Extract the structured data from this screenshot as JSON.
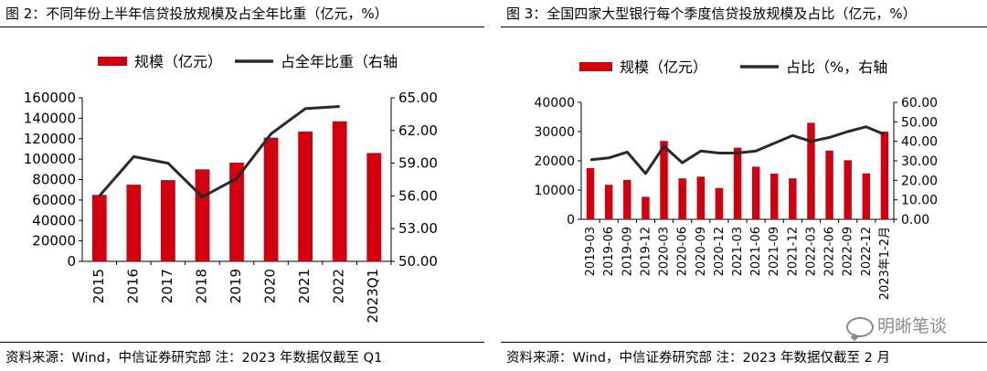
{
  "watermark": "明晰笔谈",
  "chart_data": [
    {
      "type": "bar",
      "title": "图 2：不同年份上半年信贷投放规模及占全年比重（亿元，%）",
      "source": "资料来源：Wind，中信证券研究部  注：2023 年数据仅截至 Q1",
      "categories": [
        "2015",
        "2016",
        "2017",
        "2018",
        "2019",
        "2020",
        "2021",
        "2022",
        "2023Q1"
      ],
      "series": [
        {
          "name": "规模（亿元）",
          "type": "bar",
          "axis": "left",
          "color": "#D2000F",
          "values": [
            65000,
            75000,
            79500,
            90000,
            96500,
            121000,
            127000,
            137000,
            106000
          ]
        },
        {
          "name": "占全年比重（右轴",
          "type": "line",
          "axis": "right",
          "color": "#2a2a2a",
          "values": [
            56.0,
            59.6,
            59.0,
            55.9,
            57.6,
            61.7,
            64.0,
            64.2,
            null
          ]
        }
      ],
      "y_left": {
        "min": 0,
        "max": 160000,
        "ticks": [
          "0",
          "20000",
          "40000",
          "60000",
          "80000",
          "100000",
          "120000",
          "140000",
          "160000"
        ]
      },
      "y_right": {
        "min": 50,
        "max": 65,
        "ticks": [
          "50.00",
          "53.00",
          "56.00",
          "59.00",
          "62.00",
          "65.00"
        ]
      },
      "legend_position": "top",
      "grid": false
    },
    {
      "type": "bar",
      "title": "图 3：全国四家大型银行每个季度信贷投放规模及占比（亿元，%）",
      "source": "资料来源：Wind，中信证券研究部  注：2023 年数据仅截至 2 月",
      "categories": [
        "2019-03",
        "2019-06",
        "2019-09",
        "2019-12",
        "2020-03",
        "2020-06",
        "2020-09",
        "2020-12",
        "2021-03",
        "2021-06",
        "2021-09",
        "2021-12",
        "2022-03",
        "2022-06",
        "2022-09",
        "2022-12",
        "2023年1-2月"
      ],
      "series": [
        {
          "name": "规模（亿元）",
          "type": "bar",
          "axis": "left",
          "color": "#D2000F",
          "values": [
            17500,
            11800,
            13500,
            7700,
            26800,
            14000,
            14600,
            10700,
            24500,
            18000,
            15600,
            14000,
            33000,
            23500,
            20200,
            15700,
            30000
          ]
        },
        {
          "name": "占比（%，右轴",
          "type": "line",
          "axis": "right",
          "color": "#2a2a2a",
          "values": [
            30.5,
            31.5,
            34.5,
            23.5,
            37.5,
            29.0,
            35.0,
            34.0,
            34.0,
            35.0,
            39.0,
            43.0,
            40.0,
            42.0,
            45.0,
            47.5,
            43.5
          ]
        }
      ],
      "y_left": {
        "min": 0,
        "max": 40000,
        "ticks": [
          "0",
          "10000",
          "20000",
          "30000",
          "40000"
        ]
      },
      "y_right": {
        "min": 0,
        "max": 60,
        "ticks": [
          "0.00",
          "10.00",
          "20.00",
          "30.00",
          "40.00",
          "50.00",
          "60.00"
        ]
      },
      "legend_position": "top",
      "grid": false
    }
  ]
}
